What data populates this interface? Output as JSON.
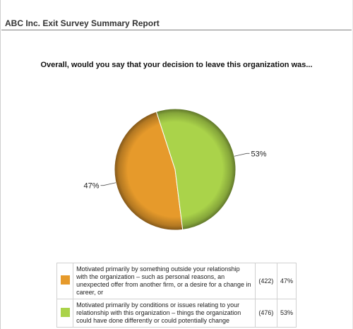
{
  "report": {
    "title": "ABC Inc. Exit Survey Summary Report"
  },
  "chart_data": {
    "type": "pie",
    "title": "Overall, would you say that your decision to leave this organization was...",
    "slices": [
      {
        "label": "Motivated primarily by something outside your relationship with the organization – such as personal reasons, an unexpected offer from another firm, or a desire for a change in career, or",
        "count": 422,
        "count_text": "(422)",
        "percent": 47,
        "percent_text": "47%",
        "color": "#e69a2b"
      },
      {
        "label": "Motivated primarily by conditions or issues relating to your relationship with this organization – things the organization could have done differently or could potentially change",
        "count": 476,
        "count_text": "(476)",
        "percent": 53,
        "percent_text": "53%",
        "color": "#aad34a"
      }
    ]
  }
}
